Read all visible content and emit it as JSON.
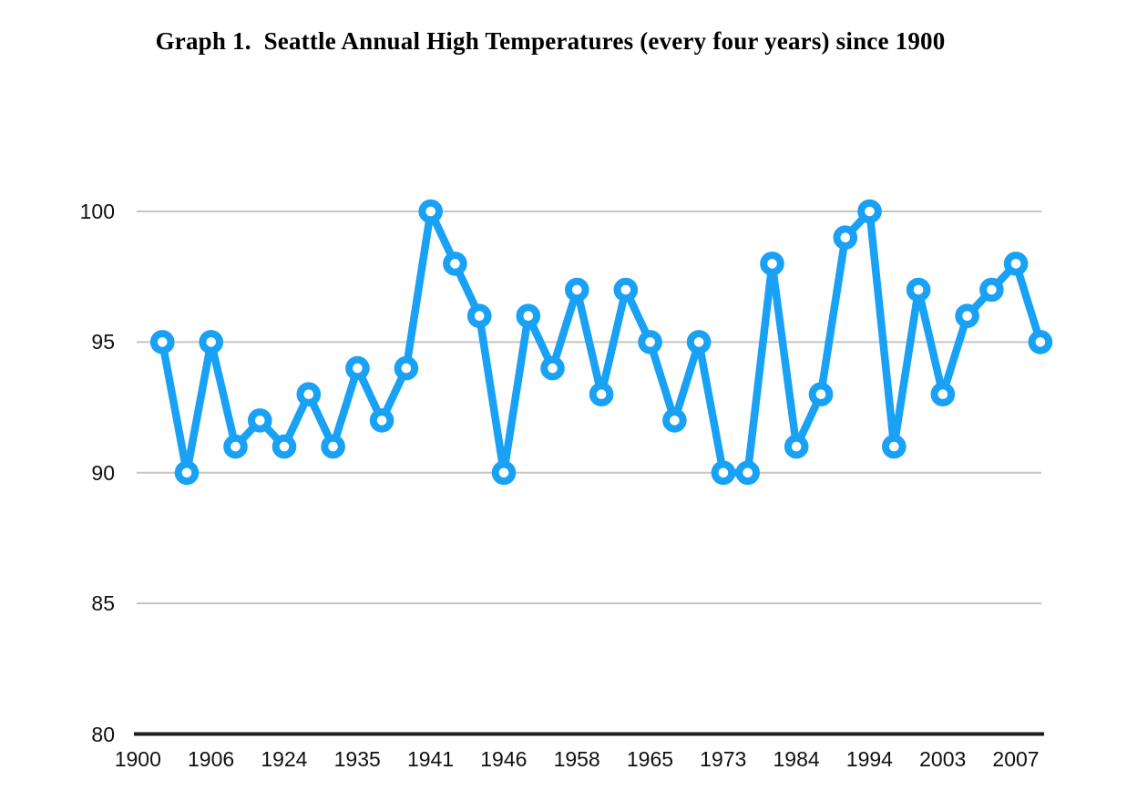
{
  "title": "Graph 1.  Seattle Annual High Temperatures (every four years) since 1900",
  "chart_data": {
    "type": "line",
    "title": "Graph 1.  Seattle Annual High Temperatures (every four years) since 1900",
    "series": [
      {
        "name": "Seattle annual high temperature",
        "values": [
          95,
          90,
          95,
          91,
          92,
          91,
          93,
          91,
          94,
          92,
          94,
          100,
          98,
          96,
          90,
          96,
          94,
          97,
          93,
          97,
          95,
          92,
          95,
          90,
          90,
          98,
          91,
          93,
          99,
          100,
          91,
          97,
          93,
          96,
          97,
          98,
          95
        ]
      }
    ],
    "x_tick_labels": [
      "1900",
      "1906",
      "1924",
      "1935",
      "1941",
      "1946",
      "1958",
      "1965",
      "1973",
      "1984",
      "1994",
      "2003",
      "2007"
    ],
    "y_tick_labels": [
      "100",
      "95",
      "90",
      "85",
      "80"
    ],
    "y_ticks": [
      100,
      95,
      90,
      85,
      80
    ],
    "ylim": [
      80,
      100
    ],
    "grid": true,
    "legend": false,
    "marker": "open-circle",
    "colors": {
      "line": "#18A1F5",
      "marker_fill": "#ffffff",
      "gridline": "#c5c5c5",
      "axis": "#1b1b1b",
      "text": "#111111",
      "title_text": "#000000",
      "background": "#ffffff"
    }
  }
}
